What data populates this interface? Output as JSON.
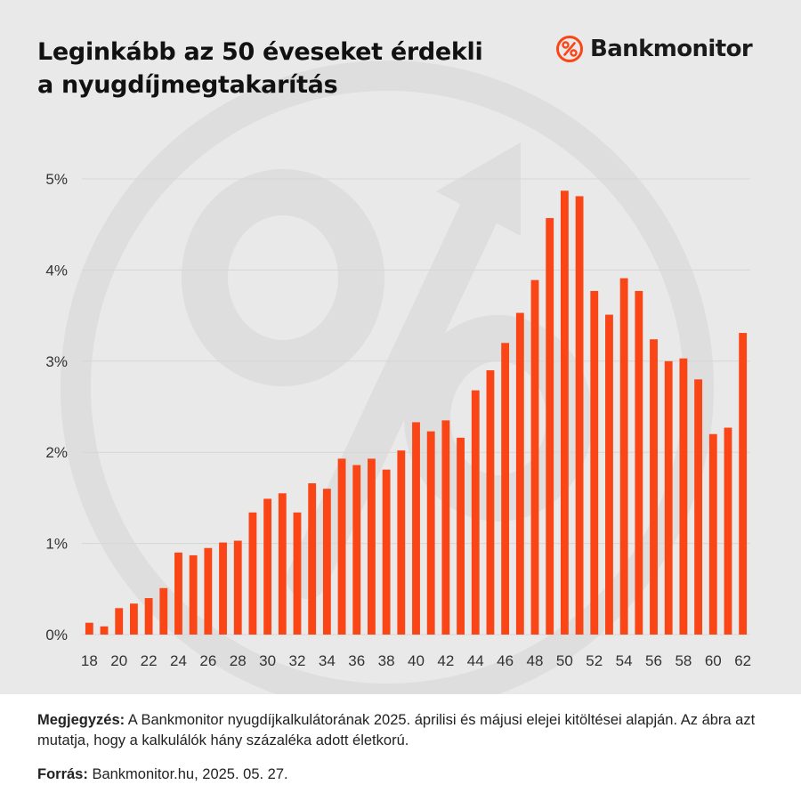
{
  "header": {
    "title_line1": "Leginkább az 50 éveseket érdekli",
    "title_line2": "a nyugdíjmegtakarítás",
    "brand": "Bankmonitor"
  },
  "colors": {
    "bar": "#fa4616",
    "panel_background": "#e9e9e9",
    "gridline": "#d6d6d6",
    "watermark": "#dedede",
    "logo_accent": "#fa4616"
  },
  "icons": {
    "logo": "percent-circle-icon",
    "watermark": "percent-arrow-watermark-icon"
  },
  "chart_data": {
    "type": "bar",
    "categories": [
      18,
      19,
      20,
      21,
      22,
      23,
      24,
      25,
      26,
      27,
      28,
      29,
      30,
      31,
      32,
      33,
      34,
      35,
      36,
      37,
      38,
      39,
      40,
      41,
      42,
      43,
      44,
      45,
      46,
      47,
      48,
      49,
      50,
      51,
      52,
      53,
      54,
      55,
      56,
      57,
      58,
      59,
      60,
      61,
      62
    ],
    "values": [
      0.13,
      0.09,
      0.29,
      0.34,
      0.4,
      0.51,
      0.9,
      0.87,
      0.95,
      1.01,
      1.03,
      1.34,
      1.49,
      1.55,
      1.34,
      1.66,
      1.6,
      1.93,
      1.86,
      1.93,
      1.81,
      2.02,
      2.33,
      2.23,
      2.35,
      2.16,
      2.68,
      2.9,
      3.2,
      3.53,
      3.89,
      4.57,
      4.87,
      4.81,
      3.77,
      3.51,
      3.91,
      3.77,
      3.24,
      3.0,
      3.03,
      2.8,
      2.2,
      2.27,
      3.31
    ],
    "xticks": [
      "18",
      "20",
      "22",
      "24",
      "26",
      "28",
      "30",
      "32",
      "34",
      "36",
      "38",
      "40",
      "42",
      "44",
      "46",
      "48",
      "50",
      "52",
      "54",
      "56",
      "58",
      "60",
      "62"
    ],
    "yticks": [
      "0%",
      "1%",
      "2%",
      "3%",
      "4%",
      "5%"
    ],
    "ylim": [
      0,
      5
    ],
    "grid": true,
    "legend": "none"
  },
  "footer": {
    "note_label": "Megjegyzés:",
    "note_text": " A Bankmonitor nyugdíjkalkulátorának 2025. áprilisi és májusi elejei kitöltései alapján. Az ábra azt mutatja, hogy a kalkulálók hány százaléka adott életkorú.",
    "source_label": "Forrás:",
    "source_text": " Bankmonitor.hu, 2025. 05. 27."
  }
}
